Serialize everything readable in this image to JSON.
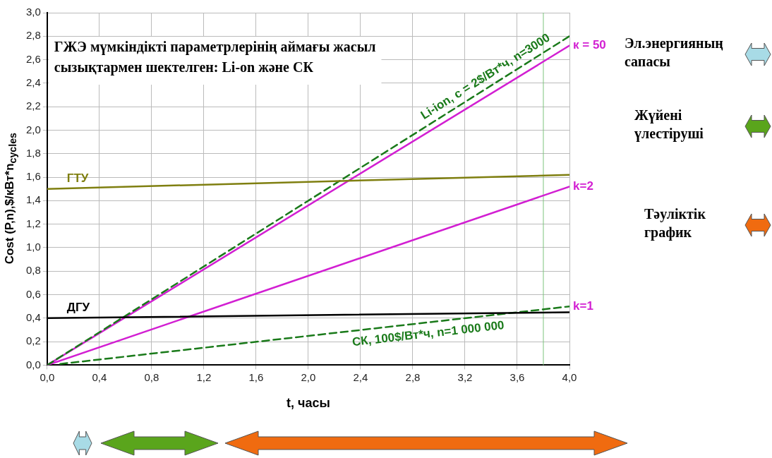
{
  "chart_data": {
    "type": "line",
    "title": "ГЖЭ мүмкіндікті параметрлерінің аймағы жасыл сызықтармен шектелген: Li-on және СК",
    "xlabel": "t, часы",
    "ylabel": "Cost (P,n),$/кВт*n$_{cycles}$",
    "xlim": [
      0,
      4
    ],
    "ylim": [
      0,
      3
    ],
    "xticks": [
      {
        "value": 0,
        "label": "0,0"
      },
      {
        "value": 0.4,
        "label": "0,4"
      },
      {
        "value": 0.8,
        "label": "0,8"
      },
      {
        "value": 1.2,
        "label": "1,2"
      },
      {
        "value": 1.6,
        "label": "1,6"
      },
      {
        "value": 2,
        "label": "2,0"
      },
      {
        "value": 2.4,
        "label": "2,4"
      },
      {
        "value": 2.8,
        "label": "2,8"
      },
      {
        "value": 3.2,
        "label": "3,2"
      },
      {
        "value": 3.6,
        "label": "3,6"
      },
      {
        "value": 4,
        "label": "4,0"
      }
    ],
    "yticks": [
      {
        "value": 0,
        "label": "0,0"
      },
      {
        "value": 0.2,
        "label": "0,2"
      },
      {
        "value": 0.4,
        "label": "0,4"
      },
      {
        "value": 0.6,
        "label": "0,6"
      },
      {
        "value": 0.8,
        "label": "0,8"
      },
      {
        "value": 1,
        "label": "1,0"
      },
      {
        "value": 1.2,
        "label": "1,2"
      },
      {
        "value": 1.4,
        "label": "1,4"
      },
      {
        "value": 1.6,
        "label": "1,6"
      },
      {
        "value": 1.8,
        "label": "1,8"
      },
      {
        "value": 2,
        "label": "2,0"
      },
      {
        "value": 2.2,
        "label": "2,2"
      },
      {
        "value": 2.4,
        "label": "2,4"
      },
      {
        "value": 2.6,
        "label": "2,6"
      },
      {
        "value": 2.8,
        "label": "2,8"
      },
      {
        "value": 3,
        "label": "3,0"
      }
    ],
    "grid": true,
    "legend": false,
    "marker": "none",
    "series": [
      {
        "name": "ГТУ",
        "color": "#7f7f10",
        "x": [
          0,
          4
        ],
        "values": [
          1.5,
          1.62
        ]
      },
      {
        "name": "ДГУ",
        "color": "#000000",
        "x": [
          0,
          4
        ],
        "values": [
          0.4,
          0.45
        ]
      },
      {
        "name": "Li-ion, c = 2$/Вт*ч, n=3000",
        "color": "#1a7a1a",
        "line_style": "dashed",
        "x": [
          0,
          4
        ],
        "values": [
          0,
          2.8
        ]
      },
      {
        "name": "к = 50",
        "color": "#d21fd2",
        "x": [
          0,
          4
        ],
        "values": [
          0,
          2.72
        ]
      },
      {
        "name": "k=2",
        "color": "#d21fd2",
        "x": [
          0,
          4
        ],
        "values": [
          0,
          1.52
        ]
      },
      {
        "name": "СК, 100$/Вт*ч, n=1 000 000",
        "color": "#1a7a1a",
        "line_style": "dashed",
        "x": [
          0.1,
          4
        ],
        "values": [
          0.01,
          0.5
        ]
      }
    ],
    "ref_lines": [
      {
        "axis": "x",
        "value": 3.8,
        "color": "#7cc47c"
      }
    ],
    "annotations": [
      "Эл.энергияның сапасы",
      "Жүйені үлестіруші",
      "Тәуліктік график",
      {
        "text": "k=1",
        "x": 4,
        "y": 0.5
      }
    ]
  }
}
